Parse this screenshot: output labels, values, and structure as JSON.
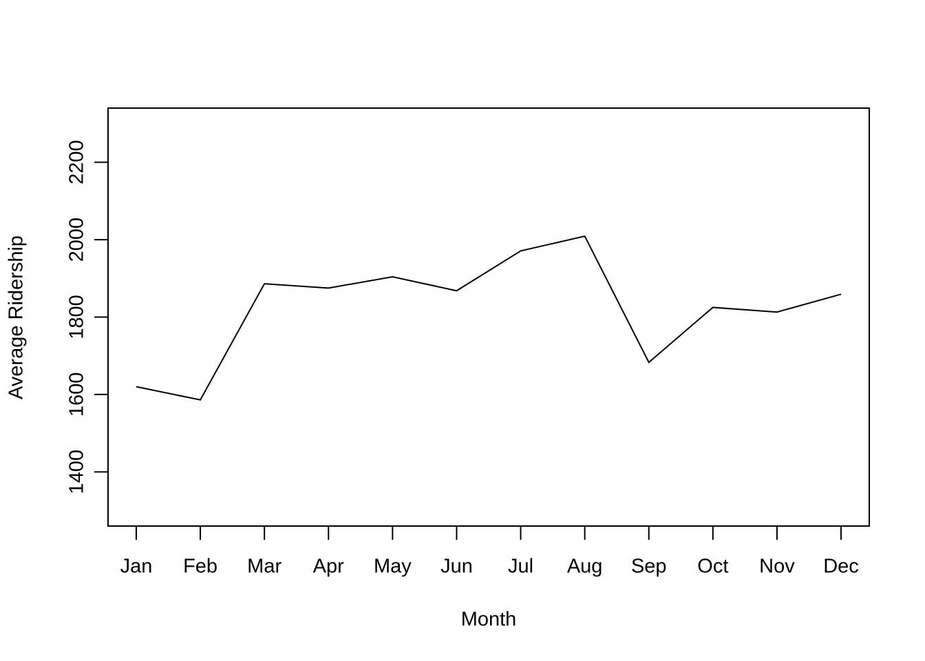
{
  "chart_data": {
    "type": "line",
    "x_label": "Month",
    "y_label": "Average Ridership",
    "categories": [
      "Jan",
      "Feb",
      "Mar",
      "Apr",
      "May",
      "Jun",
      "Jul",
      "Aug",
      "Sep",
      "Oct",
      "Nov",
      "Dec"
    ],
    "values": [
      1620,
      1586,
      1886,
      1875,
      1904,
      1868,
      1971,
      2009,
      1683,
      1825,
      1813,
      1859
    ],
    "color": "#000000",
    "ylim": [
      1260,
      2340
    ],
    "yticks": [
      1400,
      1600,
      1800,
      2000,
      2200
    ]
  }
}
